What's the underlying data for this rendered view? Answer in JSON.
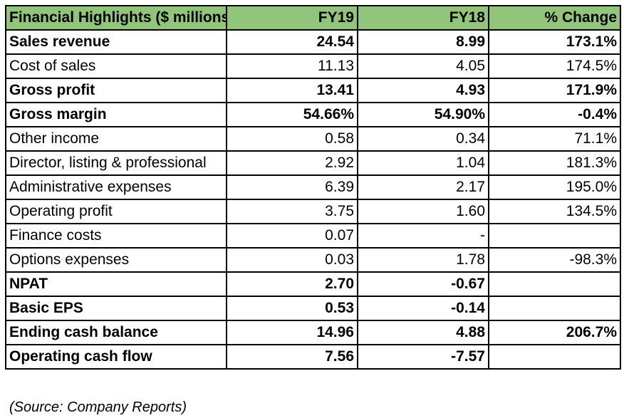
{
  "table": {
    "headers": [
      "Financial Highlights ($ millions)",
      "FY19",
      "FY18",
      "% Change"
    ],
    "rows": [
      {
        "label": "Sales revenue",
        "fy19": "24.54",
        "fy18": "8.99",
        "change": "173.1%",
        "bold": true
      },
      {
        "label": "Cost of sales",
        "fy19": "11.13",
        "fy18": "4.05",
        "change": "174.5%",
        "bold": false
      },
      {
        "label": "Gross profit",
        "fy19": "13.41",
        "fy18": "4.93",
        "change": "171.9%",
        "bold": true
      },
      {
        "label": "Gross margin",
        "fy19": "54.66%",
        "fy18": "54.90%",
        "change": "-0.4%",
        "bold": true
      },
      {
        "label": "Other income",
        "fy19": "0.58",
        "fy18": "0.34",
        "change": "71.1%",
        "bold": false
      },
      {
        "label": "Director, listing & professional",
        "fy19": "2.92",
        "fy18": "1.04",
        "change": "181.3%",
        "bold": false
      },
      {
        "label": "Administrative expenses",
        "fy19": "6.39",
        "fy18": "2.17",
        "change": "195.0%",
        "bold": false
      },
      {
        "label": "Operating profit",
        "fy19": "3.75",
        "fy18": "1.60",
        "change": "134.5%",
        "bold": false
      },
      {
        "label": "Finance costs",
        "fy19": "0.07",
        "fy18": "-",
        "change": "",
        "bold": false
      },
      {
        "label": "Options expenses",
        "fy19": "0.03",
        "fy18": "1.78",
        "change": "-98.3%",
        "bold": false
      },
      {
        "label": "NPAT",
        "fy19": "2.70",
        "fy18": "-0.67",
        "change": "",
        "bold": true
      },
      {
        "label": "Basic EPS",
        "fy19": "0.53",
        "fy18": "-0.14",
        "change": "",
        "bold": true
      },
      {
        "label": "Ending cash balance",
        "fy19": "14.96",
        "fy18": "4.88",
        "change": "206.7%",
        "bold": true
      },
      {
        "label": "Operating cash flow",
        "fy19": "7.56",
        "fy18": "-7.57",
        "change": "",
        "bold": true
      }
    ]
  },
  "source_note": "(Source: Company Reports)",
  "colors": {
    "header_background": "#92c47c",
    "border": "#000000"
  }
}
